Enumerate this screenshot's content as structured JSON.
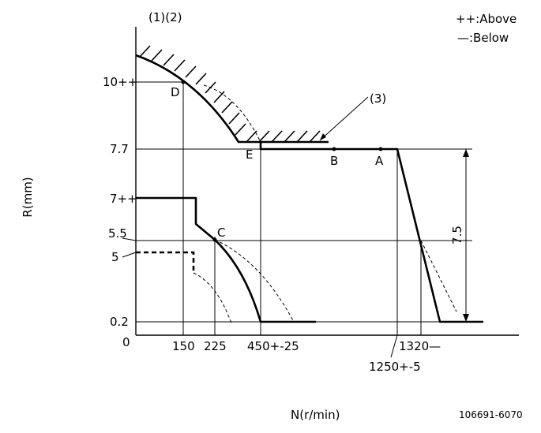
{
  "labels": {
    "header_ref": "(1)(2)",
    "legend_above": "++:Above",
    "legend_below": "—:Below",
    "y_axis": "R(mm)",
    "x_axis": "N(r/min)",
    "drawing_no": "106691-6070",
    "callout_3": "(3)",
    "stroke_dim": "7.5"
  },
  "y_ticks": [
    "10++",
    "7.7",
    "7++",
    "5.5",
    "5",
    "0.2",
    "0"
  ],
  "x_ticks": [
    "150",
    "225",
    "450+-25",
    "1320—",
    "1250+-5"
  ],
  "points": [
    "D",
    "E",
    "B",
    "A",
    "C"
  ]
}
